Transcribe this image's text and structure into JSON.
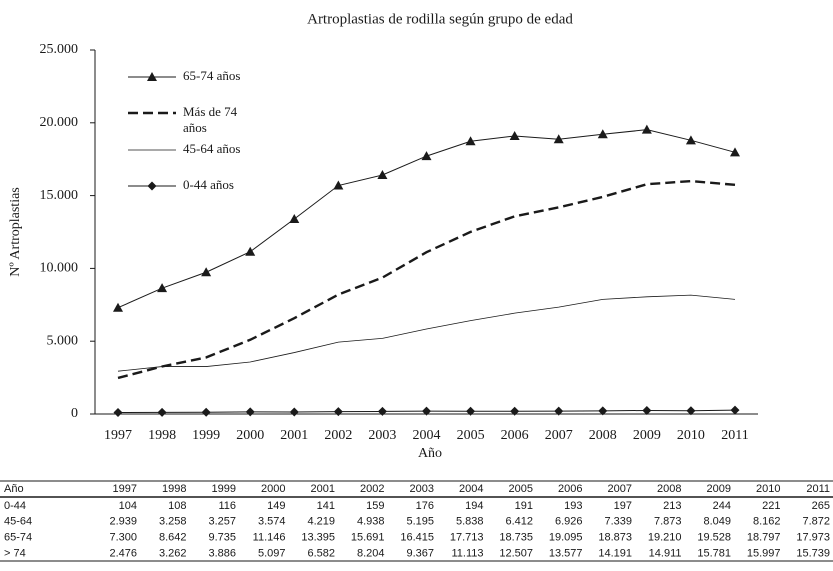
{
  "chart_data": {
    "type": "line",
    "title": "Artroplastias de rodilla según grupo de edad",
    "x_label": "Año",
    "y_label": "Nº Artroplastias",
    "categories": [
      "1997",
      "1998",
      "1999",
      "2000",
      "2001",
      "2002",
      "2003",
      "2004",
      "2005",
      "2006",
      "2007",
      "2008",
      "2009",
      "2010",
      "2011"
    ],
    "ylim": [
      0,
      25000
    ],
    "yticks": [
      0,
      {
        "value": 5000,
        "label": "5.000"
      },
      {
        "value": 10000,
        "label": "10.000"
      },
      {
        "value": 15000,
        "label": "15.000"
      },
      {
        "value": 20000,
        "label": "20.000"
      },
      {
        "value": 25000,
        "label": "25.000"
      }
    ],
    "series": [
      {
        "name": "65-74 años",
        "color": "#1a1a1a",
        "marker": "triangle",
        "values": [
          7300,
          8642,
          9735,
          11146,
          13395,
          15691,
          16415,
          17713,
          18735,
          19095,
          18873,
          19210,
          19528,
          18797,
          17973
        ],
        "value_labels": [
          "7.300",
          "8.642",
          "9.735",
          "11.146",
          "13.395",
          "15.691",
          "16.415",
          "17.713",
          "18.735",
          "19.095",
          "18.873",
          "19.210",
          "19.528",
          "18.797",
          "17.973"
        ]
      },
      {
        "name": "Más de 74 años",
        "color": "#1a1a1a",
        "line_style": "dashed",
        "values": [
          2476,
          3262,
          3886,
          5097,
          6582,
          8204,
          9367,
          11113,
          12507,
          13577,
          14191,
          14911,
          15781,
          15997,
          15739
        ],
        "value_labels": [
          "2.476",
          "3.262",
          "3.886",
          "5.097",
          "6.582",
          "8.204",
          "9.367",
          "11.113",
          "12.507",
          "13.577",
          "14.191",
          "14.911",
          "15.781",
          "15.997",
          "15.739"
        ]
      },
      {
        "name": "45-64 años",
        "color": "#1a1a1a",
        "line_style": "thin",
        "values": [
          2939,
          3258,
          3257,
          3574,
          4219,
          4938,
          5195,
          5838,
          6412,
          6926,
          7339,
          7873,
          8049,
          8162,
          7872
        ],
        "value_labels": [
          "2.939",
          "3.258",
          "3.257",
          "3.574",
          "4.219",
          "4.938",
          "5.195",
          "5.838",
          "6.412",
          "6.926",
          "7.339",
          "7.873",
          "8.049",
          "8.162",
          "7.872"
        ]
      },
      {
        "name": "0-44 años",
        "color": "#1a1a1a",
        "marker": "diamond",
        "values": [
          104,
          108,
          116,
          149,
          141,
          159,
          176,
          194,
          191,
          193,
          197,
          213,
          244,
          221,
          265
        ],
        "value_labels": [
          "104",
          "108",
          "116",
          "149",
          "141",
          "159",
          "176",
          "194",
          "191",
          "193",
          "197",
          "213",
          "244",
          "221",
          "265"
        ]
      }
    ]
  },
  "table": {
    "header": "Año",
    "row_labels": [
      "0-44",
      "45-64",
      "65-74",
      "> 74"
    ]
  }
}
